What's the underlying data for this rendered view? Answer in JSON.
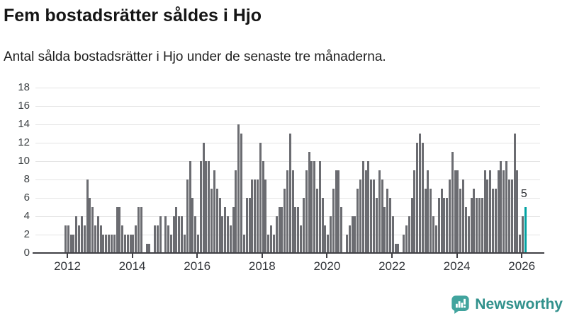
{
  "title": "Fem bostadsrätter såldes i Hjo",
  "subtitle": "Antal sålda bostadsrätter i Hjo under de senaste tre månaderna.",
  "colors": {
    "bar": "#6b6c71",
    "accent": "#00a2a2",
    "grid": "#e4e4e4",
    "axis_line": "#404045",
    "tick": "#404045",
    "logo_icon": "#41a49e",
    "logo_text": "#31918c"
  },
  "chart_data": {
    "type": "bar",
    "title": "Fem bostadsrätter såldes i Hjo",
    "subtitle": "Antal sålda bostadsrätter i Hjo under de senaste tre månaderna.",
    "xlabel": "",
    "ylabel": "",
    "ylim": [
      0,
      18
    ],
    "grid": true,
    "x_start_month": "2011-12",
    "x_end_month": "2026-02",
    "y_ticks": [
      0,
      2,
      4,
      6,
      8,
      10,
      12,
      14,
      16,
      18
    ],
    "x_ticks": [
      "2012",
      "2014",
      "2016",
      "2018",
      "2020",
      "2022",
      "2024",
      "2026"
    ],
    "values": [
      3,
      3,
      2,
      2,
      4,
      3,
      4,
      3,
      8,
      6,
      5,
      3,
      4,
      3,
      2,
      2,
      2,
      2,
      2,
      5,
      5,
      3,
      2,
      2,
      2,
      2,
      3,
      5,
      5,
      0,
      1,
      1,
      0,
      3,
      3,
      4,
      0,
      4,
      3,
      2,
      4,
      5,
      4,
      4,
      2,
      8,
      10,
      6,
      4,
      2,
      10,
      12,
      10,
      10,
      7,
      9,
      7,
      6,
      4,
      5,
      4,
      3,
      5,
      9,
      14,
      13,
      2,
      6,
      6,
      8,
      8,
      8,
      12,
      10,
      8,
      2,
      3,
      2,
      4,
      5,
      5,
      7,
      9,
      13,
      9,
      5,
      5,
      3,
      6,
      9,
      11,
      10,
      10,
      7,
      10,
      6,
      3,
      2,
      4,
      7,
      9,
      9,
      5,
      0,
      2,
      3,
      4,
      4,
      7,
      8,
      10,
      9,
      10,
      8,
      8,
      6,
      9,
      8,
      5,
      7,
      6,
      4,
      1,
      1,
      0,
      2,
      3,
      4,
      6,
      9,
      12,
      13,
      12,
      7,
      9,
      7,
      4,
      3,
      6,
      7,
      6,
      6,
      8,
      11,
      9,
      9,
      7,
      8,
      5,
      4,
      6,
      7,
      6,
      6,
      6,
      9,
      8,
      9,
      7,
      7,
      9,
      10,
      9,
      10,
      8,
      8,
      13,
      9,
      2,
      4,
      5
    ],
    "highlight_last": true,
    "last_value_label": "5",
    "legend": []
  },
  "logo": {
    "text": "Newsworthy"
  }
}
